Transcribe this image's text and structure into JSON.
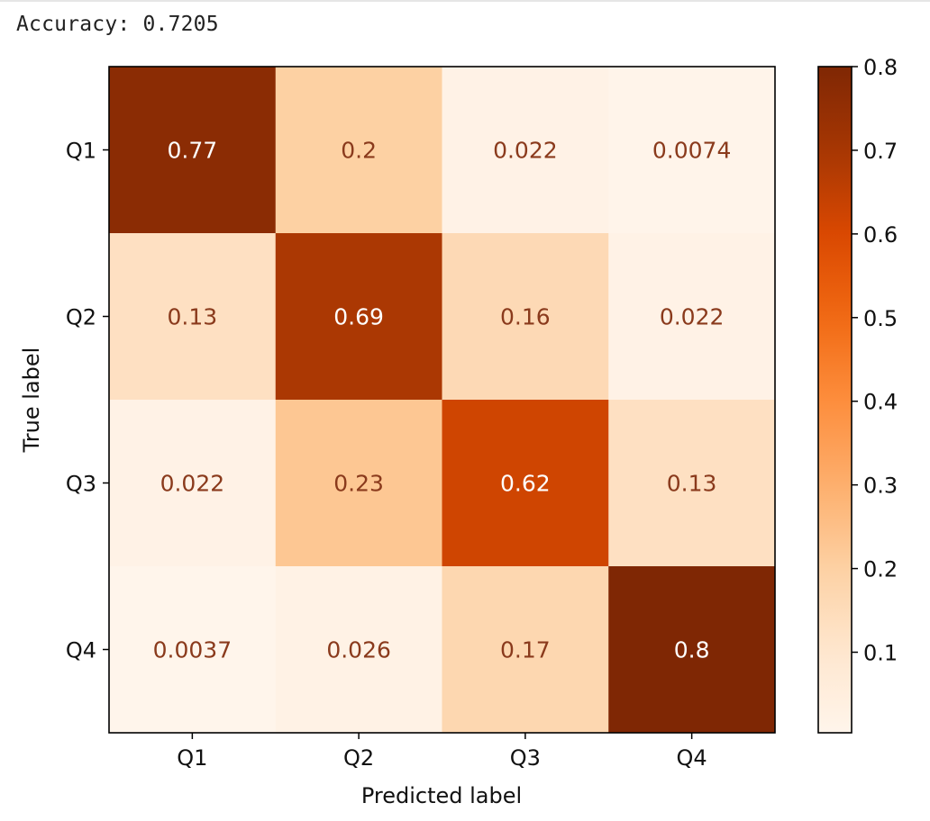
{
  "output": {
    "accuracy_text": "Accuracy: 0.7205"
  },
  "chart_data": {
    "type": "heatmap",
    "title": "",
    "xlabel": "Predicted label",
    "ylabel": "True label",
    "x_categories": [
      "Q1",
      "Q2",
      "Q3",
      "Q4"
    ],
    "y_categories": [
      "Q1",
      "Q2",
      "Q3",
      "Q4"
    ],
    "values": [
      [
        0.77,
        0.2,
        0.022,
        0.0074
      ],
      [
        0.13,
        0.69,
        0.16,
        0.022
      ],
      [
        0.022,
        0.23,
        0.62,
        0.13
      ],
      [
        0.0037,
        0.026,
        0.17,
        0.8
      ]
    ],
    "value_labels": [
      [
        "0.77",
        "0.2",
        "0.022",
        "0.0074"
      ],
      [
        "0.13",
        "0.69",
        "0.16",
        "0.022"
      ],
      [
        "0.022",
        "0.23",
        "0.62",
        "0.13"
      ],
      [
        "0.0037",
        "0.026",
        "0.17",
        "0.8"
      ]
    ],
    "colormap": "Oranges",
    "vmin": 0.0037,
    "vmax": 0.8,
    "colorbar": {
      "ticks": [
        0.1,
        0.2,
        0.3,
        0.4,
        0.5,
        0.6,
        0.7,
        0.8
      ],
      "tick_labels": [
        "0.1",
        "0.2",
        "0.3",
        "0.4",
        "0.5",
        "0.6",
        "0.7",
        "0.8"
      ]
    },
    "colors": {
      "dark_text": "#8a3a1c",
      "light_text": "#ffffff",
      "frame": "#000000"
    }
  }
}
